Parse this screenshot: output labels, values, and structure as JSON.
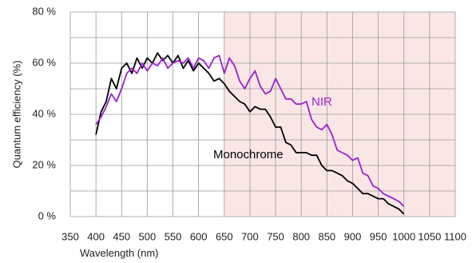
{
  "chart_data": {
    "type": "line",
    "x_label": "Wavelength (nm)",
    "y_label": "Quantum efficiency (%)",
    "x": [
      400,
      410,
      420,
      430,
      440,
      450,
      460,
      470,
      480,
      490,
      500,
      510,
      520,
      530,
      540,
      550,
      560,
      570,
      580,
      590,
      600,
      610,
      620,
      630,
      640,
      650,
      660,
      670,
      680,
      690,
      700,
      710,
      720,
      730,
      740,
      750,
      760,
      770,
      780,
      790,
      800,
      810,
      820,
      830,
      840,
      850,
      860,
      870,
      880,
      890,
      900,
      910,
      920,
      930,
      940,
      950,
      960,
      970,
      980,
      990,
      1000
    ],
    "series": [
      {
        "name": "Monochrome",
        "color": "#000000",
        "values": [
          32,
          41,
          45,
          54,
          50,
          58,
          60,
          56,
          62,
          58,
          62,
          60,
          64,
          61,
          63,
          60,
          63,
          58,
          61,
          57,
          60,
          58,
          56,
          53,
          54,
          52,
          49,
          47,
          45,
          44,
          41,
          43,
          42,
          42,
          39,
          35,
          35,
          29,
          28,
          25,
          25,
          25,
          24,
          24,
          20,
          18,
          18,
          17,
          16,
          14,
          13,
          11,
          9,
          9,
          8,
          7,
          7,
          5,
          4,
          3,
          1
        ]
      },
      {
        "name": "NIR",
        "color": "#9b1fd0",
        "values": [
          36,
          39,
          43,
          48,
          45,
          50,
          56,
          58,
          56,
          60,
          57,
          60,
          59,
          62,
          58,
          60,
          61,
          60,
          62,
          58,
          62,
          61,
          58,
          62,
          63,
          56,
          62,
          59,
          53,
          50,
          54,
          57,
          51,
          48,
          49,
          54,
          50,
          46,
          46,
          44,
          44,
          45,
          38,
          35,
          34,
          36,
          32,
          26,
          25,
          24,
          22,
          23,
          17,
          16,
          12,
          11,
          9,
          8,
          7,
          6,
          4
        ]
      }
    ],
    "xlim": [
      350,
      1100
    ],
    "xticks": [
      350,
      400,
      450,
      500,
      550,
      600,
      650,
      700,
      750,
      800,
      850,
      900,
      950,
      1000,
      1050,
      1100
    ],
    "ylim": [
      0,
      80
    ],
    "yticks": [
      {
        "value": 0,
        "label": "0 %"
      },
      {
        "value": 20,
        "label": "20 %"
      },
      {
        "value": 40,
        "label": "40 %"
      },
      {
        "value": 60,
        "label": "60 %"
      },
      {
        "value": 80,
        "label": "80 %"
      }
    ],
    "y_minor_grid": [
      10,
      30,
      50,
      70
    ],
    "highlight_xrange": [
      650,
      1100
    ],
    "highlight_color": "#fbe6e6",
    "grid": true
  }
}
